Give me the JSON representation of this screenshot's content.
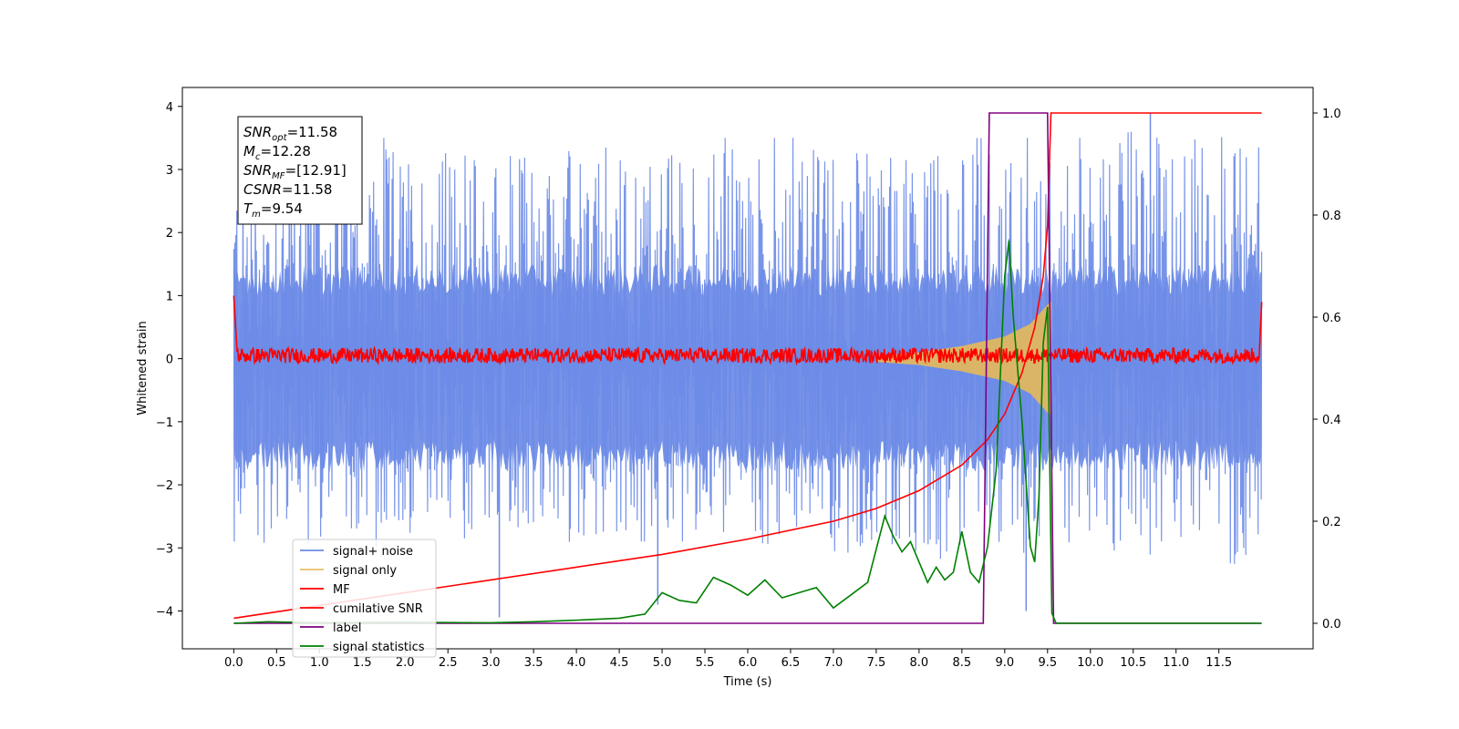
{
  "chart_data": {
    "type": "line",
    "xlabel": "Time (s)",
    "ylabel": "Whitened strain",
    "xlim": [
      -0.6,
      12.6
    ],
    "ylim_left": [
      -4.6,
      4.3
    ],
    "ylim_right": [
      -0.05,
      1.05
    ],
    "x_ticks": [
      "0.0",
      "0.5",
      "1.0",
      "1.5",
      "2.0",
      "2.5",
      "3.0",
      "3.5",
      "4.0",
      "4.5",
      "5.0",
      "5.5",
      "6.0",
      "6.5",
      "7.0",
      "7.5",
      "8.0",
      "8.5",
      "9.0",
      "9.5",
      "10.0",
      "10.5",
      "11.0",
      "11.5"
    ],
    "y_ticks_left": [
      "4",
      "3",
      "2",
      "1",
      "0",
      "−1",
      "−2",
      "−3",
      "−4"
    ],
    "y_ticks_right": [
      "1.0",
      "0.8",
      "0.6",
      "0.4",
      "0.2",
      "0.0"
    ],
    "grid": false,
    "legend_position": "lower-left",
    "series": [
      {
        "name": "signal+ noise",
        "axis": "left",
        "color": "#6d8be6",
        "envelope_x": [
          0,
          2,
          4,
          6,
          8,
          10,
          12
        ],
        "envelope_top": [
          3.5,
          3.5,
          3.5,
          3.5,
          3.5,
          3.5,
          3.9
        ],
        "envelope_bottom": [
          -2.9,
          -3.0,
          -2.9,
          -2.9,
          -3.2,
          -3.0,
          -3.3
        ],
        "notable_spikes": [
          {
            "x": 3.1,
            "y": -4.1
          },
          {
            "x": 4.95,
            "y": -3.9
          },
          {
            "x": 9.25,
            "y": -4.0
          },
          {
            "x": 10.7,
            "y": 3.9
          }
        ]
      },
      {
        "name": "signal only",
        "axis": "left",
        "color": "#e6b95a",
        "envelope_x": [
          7.5,
          8.0,
          8.5,
          9.0,
          9.3,
          9.5,
          9.54
        ],
        "amplitude": [
          0.05,
          0.1,
          0.2,
          0.35,
          0.55,
          0.85,
          0.9
        ]
      },
      {
        "name": "MF",
        "axis": "left",
        "color": "#ff0000",
        "x_range": [
          0,
          12
        ],
        "y_center": 0.05,
        "y_spread": 0.12,
        "edge_values": [
          1.0,
          0.9
        ]
      },
      {
        "name": "cumilative SNR",
        "axis": "right",
        "color": "#ff0000",
        "x": [
          0.0,
          1.0,
          2.0,
          3.0,
          4.0,
          5.0,
          6.0,
          7.0,
          7.5,
          8.0,
          8.5,
          8.8,
          9.0,
          9.2,
          9.35,
          9.45,
          9.5,
          9.54,
          12.0
        ],
        "y": [
          0.01,
          0.035,
          0.06,
          0.085,
          0.11,
          0.135,
          0.165,
          0.2,
          0.225,
          0.26,
          0.31,
          0.36,
          0.41,
          0.49,
          0.58,
          0.68,
          0.78,
          1.0,
          1.0
        ]
      },
      {
        "name": "label",
        "axis": "right",
        "color": "#800080",
        "x": [
          0.0,
          8.75,
          8.82,
          9.5,
          9.57,
          12.0
        ],
        "y": [
          0.0,
          0.0,
          1.0,
          1.0,
          0.0,
          0.0
        ]
      },
      {
        "name": "signal statistics",
        "axis": "right",
        "color": "#008000",
        "x": [
          0.0,
          0.4,
          1.0,
          2.0,
          3.0,
          3.5,
          4.0,
          4.5,
          4.8,
          5.0,
          5.2,
          5.4,
          5.6,
          5.8,
          6.0,
          6.2,
          6.4,
          6.6,
          6.8,
          7.0,
          7.2,
          7.4,
          7.6,
          7.7,
          7.8,
          7.9,
          8.0,
          8.1,
          8.2,
          8.3,
          8.4,
          8.5,
          8.6,
          8.7,
          8.8,
          8.9,
          9.0,
          9.05,
          9.1,
          9.2,
          9.3,
          9.35,
          9.4,
          9.45,
          9.5,
          9.55,
          9.6,
          10.0,
          11.0,
          12.0
        ],
        "y": [
          0.0,
          0.003,
          0.001,
          0.002,
          0.001,
          0.003,
          0.006,
          0.01,
          0.018,
          0.06,
          0.045,
          0.04,
          0.09,
          0.075,
          0.055,
          0.085,
          0.05,
          0.06,
          0.07,
          0.03,
          0.055,
          0.08,
          0.21,
          0.17,
          0.14,
          0.16,
          0.12,
          0.08,
          0.11,
          0.085,
          0.1,
          0.18,
          0.1,
          0.08,
          0.15,
          0.3,
          0.68,
          0.75,
          0.6,
          0.4,
          0.15,
          0.12,
          0.25,
          0.55,
          0.62,
          0.02,
          0.0,
          0.0,
          0.0,
          0.0
        ]
      }
    ],
    "annotation": {
      "lines": [
        {
          "symbol": "SNR",
          "sub": "opt",
          "value": "=11.58"
        },
        {
          "symbol": "M",
          "sub": "c",
          "value": "=12.28"
        },
        {
          "symbol": "SNR",
          "sub": "MF",
          "value": "=[12.91]"
        },
        {
          "symbol": "CSNR",
          "sub": "",
          "value": "=11.58"
        },
        {
          "symbol": "T",
          "sub": "m",
          "value": "=9.54"
        }
      ]
    }
  }
}
